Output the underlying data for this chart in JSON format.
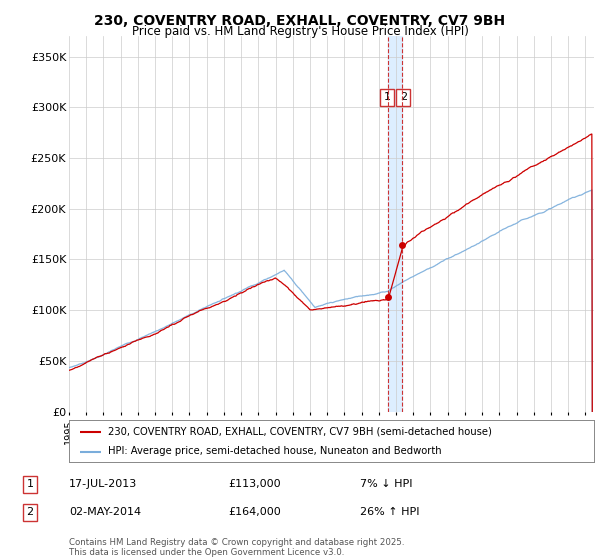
{
  "title_line1": "230, COVENTRY ROAD, EXHALL, COVENTRY, CV7 9BH",
  "title_line2": "Price paid vs. HM Land Registry's House Price Index (HPI)",
  "ytick_labels": [
    "£0",
    "£50K",
    "£100K",
    "£150K",
    "£200K",
    "£250K",
    "£300K",
    "£350K"
  ],
  "yticks": [
    0,
    50000,
    100000,
    150000,
    200000,
    250000,
    300000,
    350000
  ],
  "ylim": [
    0,
    370000
  ],
  "xlim_start": 1995.0,
  "xlim_end": 2025.5,
  "legend_label1": "230, COVENTRY ROAD, EXHALL, COVENTRY, CV7 9BH (semi-detached house)",
  "legend_label2": "HPI: Average price, semi-detached house, Nuneaton and Bedworth",
  "transaction1_label": "1",
  "transaction1_date": "17-JUL-2013",
  "transaction1_price": "£113,000",
  "transaction1_hpi": "7% ↓ HPI",
  "transaction2_label": "2",
  "transaction2_date": "02-MAY-2014",
  "transaction2_price": "£164,000",
  "transaction2_hpi": "26% ↑ HPI",
  "vline1_x": 2013.54,
  "vline2_x": 2014.37,
  "marker1_x": 2013.54,
  "marker1_y": 113000,
  "marker2_x": 2014.37,
  "marker2_y": 164000,
  "copyright_text": "Contains HM Land Registry data © Crown copyright and database right 2025.\nThis data is licensed under the Open Government Licence v3.0.",
  "line1_color": "#cc0000",
  "line2_color": "#7aaddb",
  "shade_color": "#ddeeff",
  "bg_color": "#ffffff",
  "grid_color": "#cccccc"
}
